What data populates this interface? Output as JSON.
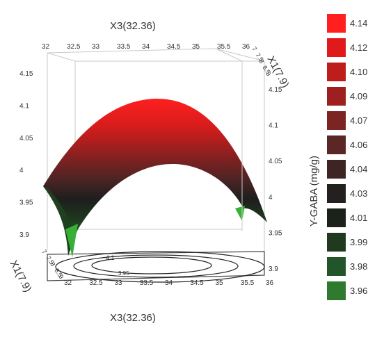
{
  "chart_data": {
    "type": "surface3d",
    "title": "",
    "top_axis_label": "X3(32.36)",
    "bottom_axis_label": "X3(32.36)",
    "depth_axis_label_top": "X1(7.9)",
    "depth_axis_label_bottom": "X1(7.9)",
    "zlabel": "Y-GABA (mg/g)",
    "x_ticks": [
      "32",
      "32.5",
      "33",
      "33.5",
      "34",
      "34.5",
      "35",
      "35.5",
      "36"
    ],
    "depth_ticks_top": [
      "7",
      "7.5",
      "8",
      "8.5",
      "9"
    ],
    "depth_ticks_bottom": [
      "7",
      "7.5",
      "8",
      "8.5",
      "9"
    ],
    "z_ticks_left": [
      "4.15",
      "4.1",
      "4.05",
      "4",
      "3.95",
      "3.9"
    ],
    "z_ticks_right": [
      "4.15",
      "4.1",
      "4.05",
      "4",
      "3.95",
      "3.9"
    ],
    "contour_labels": [
      "4.1",
      "3.95"
    ],
    "xlim": [
      32,
      36
    ],
    "ylim": [
      7,
      9
    ],
    "zlim": [
      3.9,
      4.15
    ],
    "surface_peak": {
      "x": 34.0,
      "y": 8.0,
      "z": 4.14
    },
    "legend": [
      {
        "label": "4.14",
        "color": "#ff1f1f"
      },
      {
        "label": "4.12",
        "color": "#e01a1a"
      },
      {
        "label": "4.10",
        "color": "#bf1c1c"
      },
      {
        "label": "4.09",
        "color": "#9d1f1f"
      },
      {
        "label": "4.07",
        "color": "#7c2323"
      },
      {
        "label": "4.06",
        "color": "#5b2626"
      },
      {
        "label": "4.04",
        "color": "#3f2424"
      },
      {
        "label": "4.03",
        "color": "#252020"
      },
      {
        "label": "4.01",
        "color": "#1a221a"
      },
      {
        "label": "3.99",
        "color": "#1f3a1f"
      },
      {
        "label": "3.98",
        "color": "#24552a"
      },
      {
        "label": "3.96",
        "color": "#2f7a2f"
      }
    ]
  }
}
